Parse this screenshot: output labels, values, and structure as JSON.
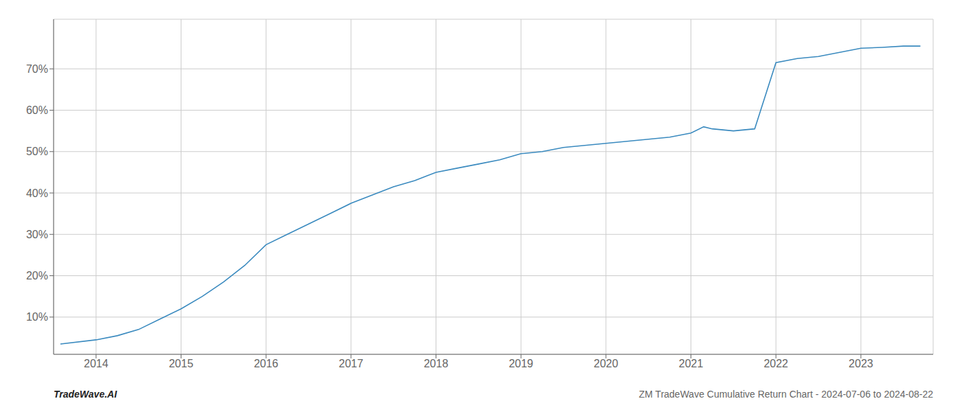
{
  "chart_data": {
    "type": "line",
    "x": [
      2013.58,
      2014.0,
      2014.25,
      2014.5,
      2014.75,
      2015.0,
      2015.25,
      2015.5,
      2015.75,
      2016.0,
      2016.25,
      2016.5,
      2016.75,
      2017.0,
      2017.25,
      2017.5,
      2017.75,
      2018.0,
      2018.25,
      2018.5,
      2018.75,
      2019.0,
      2019.25,
      2019.5,
      2019.75,
      2020.0,
      2020.25,
      2020.5,
      2020.75,
      2021.0,
      2021.15,
      2021.25,
      2021.5,
      2021.75,
      2022.0,
      2022.25,
      2022.5,
      2022.75,
      2023.0,
      2023.25,
      2023.5,
      2023.7
    ],
    "values": [
      3.5,
      4.5,
      5.5,
      7.0,
      9.5,
      12.0,
      15.0,
      18.5,
      22.5,
      27.5,
      30.0,
      32.5,
      35.0,
      37.5,
      39.5,
      41.5,
      43.0,
      45.0,
      46.0,
      47.0,
      48.0,
      49.5,
      50.0,
      51.0,
      51.5,
      52.0,
      52.5,
      53.0,
      53.5,
      54.5,
      56.0,
      55.5,
      55.0,
      55.5,
      71.5,
      72.5,
      73.0,
      74.0,
      75.0,
      75.2,
      75.5,
      75.5
    ],
    "color": "#3a8abf",
    "xlim": [
      2013.5,
      2023.85
    ],
    "xticks": [
      2014,
      2015,
      2016,
      2017,
      2018,
      2019,
      2020,
      2021,
      2022,
      2023
    ],
    "ylim": [
      1.0,
      82.0
    ],
    "yticks": [
      {
        "value": 10,
        "label": "10%"
      },
      {
        "value": 20,
        "label": "20%"
      },
      {
        "value": 30,
        "label": "30%"
      },
      {
        "value": 40,
        "label": "40%"
      },
      {
        "value": 50,
        "label": "50%"
      },
      {
        "value": 60,
        "label": "60%"
      },
      {
        "value": 70,
        "label": "70%"
      }
    ],
    "grid": true,
    "annotations": [
      "TradeWave.AI",
      "ZM TradeWave Cumulative Return Chart - 2024-07-06 to 2024-08-22"
    ]
  }
}
